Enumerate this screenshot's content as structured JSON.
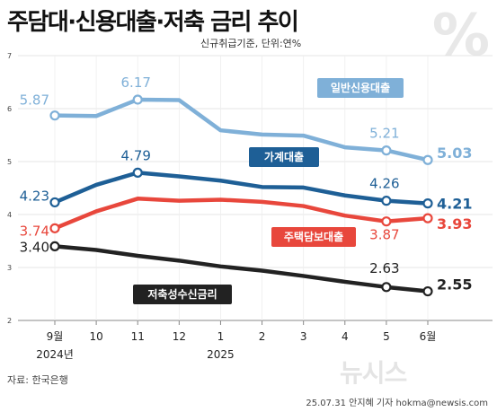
{
  "header": {
    "title": "주담대·신용대출·저축 금리 추이",
    "subtitle": "신규취급기준, 단위:연%"
  },
  "footer": {
    "source": "자료: 한국은행",
    "credit": "25.07.31 안지혜 기자 hokma@newsis.com",
    "watermark": "뉴시스"
  },
  "chart_data": {
    "type": "line",
    "title": "주담대·신용대출·저축 금리 추이",
    "subtitle": "신규취급기준, 단위:연%",
    "ylabel": "",
    "xlabel": "",
    "ylim": [
      2,
      7
    ],
    "yticks": [
      2,
      3,
      4,
      5,
      6,
      7
    ],
    "grid": true,
    "categories": [
      "9월",
      "10",
      "11",
      "12",
      "1",
      "2",
      "3",
      "4",
      "5",
      "6월"
    ],
    "year_labels": [
      {
        "label": "2024년",
        "category_index": 0
      },
      {
        "label": "2025",
        "category_index": 4
      }
    ],
    "series": [
      {
        "name": "일반신용대출",
        "color": "#7fb0d8",
        "values": [
          5.87,
          5.86,
          6.17,
          6.16,
          5.59,
          5.51,
          5.49,
          5.27,
          5.21,
          5.03
        ],
        "labels": {
          "0": "5.87",
          "2": "6.17",
          "8": "5.21",
          "9": "5.03"
        }
      },
      {
        "name": "가계대출",
        "color": "#1e5f96",
        "values": [
          4.23,
          4.56,
          4.79,
          4.72,
          4.64,
          4.52,
          4.51,
          4.36,
          4.26,
          4.21
        ],
        "labels": {
          "0": "4.23",
          "2": "4.79",
          "8": "4.26",
          "9": "4.21"
        }
      },
      {
        "name": "주택담보대출",
        "color": "#e8473c",
        "values": [
          3.74,
          4.06,
          4.3,
          4.26,
          4.28,
          4.24,
          4.16,
          3.98,
          3.87,
          3.93
        ],
        "labels": {
          "0": "3.74",
          "8": "3.87",
          "9": "3.93"
        }
      },
      {
        "name": "저축성수신금리",
        "color": "#222222",
        "values": [
          3.4,
          3.33,
          3.22,
          3.13,
          3.02,
          2.94,
          2.84,
          2.73,
          2.63,
          2.55
        ],
        "labels": {
          "0": "3.40",
          "8": "2.63",
          "9": "2.55"
        }
      }
    ]
  }
}
